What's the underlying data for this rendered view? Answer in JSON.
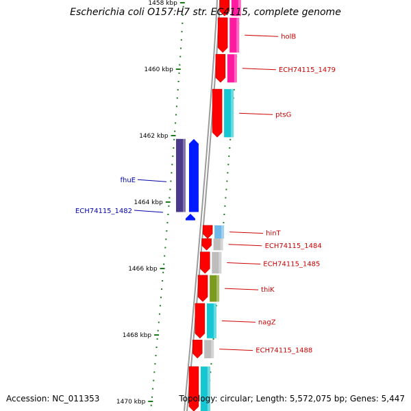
{
  "title": "Escherichia coli O157:H7 str. EC4115, complete genome",
  "accession": "Accession: NC_011353",
  "topology": "Topology: circular; Length: 5,572,075 bp; Genes: 5,447",
  "colors": {
    "tick": "#1a7a1a",
    "forward_label": "#cc0000",
    "reverse_label": "#0000aa",
    "red": "#ff0000",
    "magenta": "#ff1aa0",
    "cyan": "#17c6d3",
    "gray": "#bdbdbd",
    "olive": "#7c9a1e",
    "light_blue": "#6fb8e8",
    "blue": "#0019ff",
    "purple": "#4b3a8c",
    "backbone": "#808080"
  },
  "scale_ticks": [
    {
      "kbp": 1458,
      "label": "1458 kbp"
    },
    {
      "kbp": 1460,
      "label": "1460 kbp"
    },
    {
      "kbp": 1462,
      "label": "1462 kbp"
    },
    {
      "kbp": 1464,
      "label": "1464 kbp"
    },
    {
      "kbp": 1466,
      "label": "1466 kbp"
    },
    {
      "kbp": 1468,
      "label": "1468 kbp"
    },
    {
      "kbp": 1470,
      "label": "1470 kbp"
    }
  ],
  "genes_forward": [
    {
      "name": "",
      "start": 1457.6,
      "end": 1458.4,
      "cog": "magenta"
    },
    {
      "name": "holB",
      "start": 1458.45,
      "end": 1459.5,
      "cog": "magenta"
    },
    {
      "name": "ECH74115_1479",
      "start": 1459.55,
      "end": 1460.4,
      "cog": "magenta"
    },
    {
      "name": "ptsG",
      "start": 1460.6,
      "end": 1462.05,
      "cog": "cyan"
    },
    {
      "name": "hinT",
      "start": 1464.7,
      "end": 1465.1,
      "cog": "light_blue"
    },
    {
      "name": "ECH74115_1484",
      "start": 1465.1,
      "end": 1465.45,
      "cog": "gray"
    },
    {
      "name": "ECH74115_1485",
      "start": 1465.5,
      "end": 1466.15,
      "cog": "gray"
    },
    {
      "name": "thiK",
      "start": 1466.2,
      "end": 1467.0,
      "cog": "olive"
    },
    {
      "name": "nagZ",
      "start": 1467.05,
      "end": 1468.1,
      "cog": "cyan"
    },
    {
      "name": "ECH74115_1488",
      "start": 1468.15,
      "end": 1468.7,
      "cog": "gray"
    },
    {
      "name": "",
      "start": 1468.95,
      "end": 1470.3,
      "cog": "cyan"
    }
  ],
  "genes_reverse": [
    {
      "name": "fhuE",
      "start": 1462.1,
      "end": 1464.3,
      "cog": "purple"
    },
    {
      "name": "ECH74115_1482",
      "start": 1464.35,
      "end": 1464.55,
      "cog": "blue"
    }
  ]
}
